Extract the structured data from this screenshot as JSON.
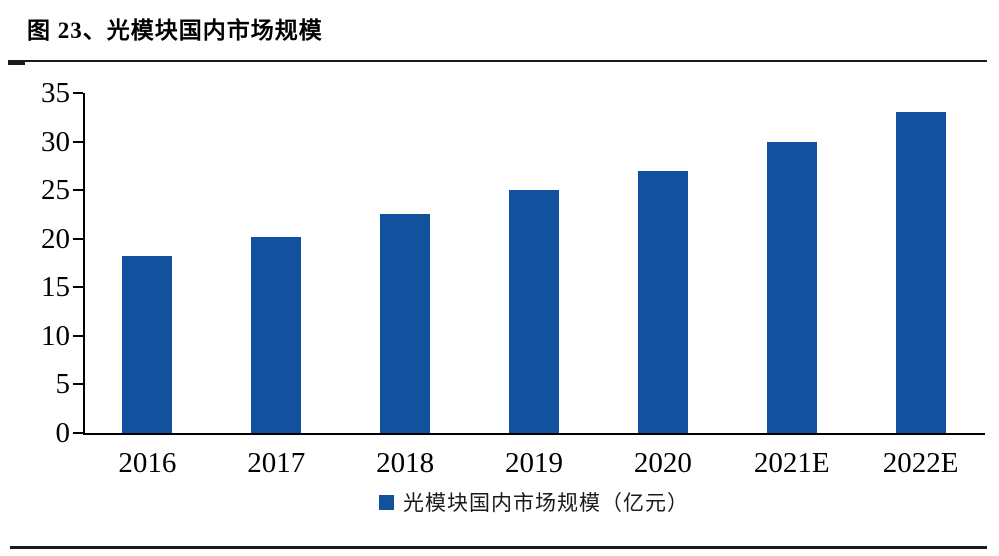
{
  "figure": {
    "title": "图 23、光模块国内市场规模"
  },
  "chart_data": {
    "type": "bar",
    "categories": [
      "2016",
      "2017",
      "2018",
      "2019",
      "2020",
      "2021E",
      "2022E"
    ],
    "values": [
      18.2,
      20.2,
      22.5,
      25,
      27,
      30,
      33
    ],
    "title": "图 23、光模块国内市场规模",
    "xlabel": "",
    "ylabel": "",
    "ylim": [
      0,
      35
    ],
    "yticks": [
      0,
      5,
      10,
      15,
      20,
      25,
      30,
      35
    ],
    "legend_entries": [
      "光模块国内市场规模（亿元）"
    ],
    "legend_position": "bottom",
    "grid": false,
    "bar_color": "#11519E"
  },
  "legend": {
    "label": "光模块国内市场规模（亿元）"
  },
  "colors": {
    "bar": "#11519E",
    "axis": "#000000",
    "text": "#000000",
    "rule": "#1a1a1a"
  }
}
